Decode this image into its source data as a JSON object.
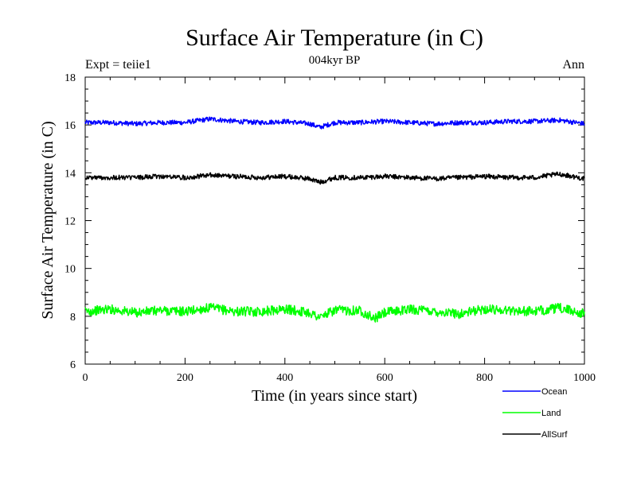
{
  "chart_data": {
    "type": "line",
    "title": "Surface Air Temperature (in C)",
    "subtitle": "004kyr BP",
    "left_label": "Expt = teiie1",
    "right_label": "Ann",
    "xlabel": "Time (in years since start)",
    "ylabel": "Surface Air Temperature (in C)",
    "xlim": [
      0,
      1000
    ],
    "ylim": [
      6,
      18
    ],
    "x_ticks": [
      0,
      200,
      400,
      600,
      800,
      1000
    ],
    "y_ticks": [
      6,
      8,
      10,
      12,
      14,
      16,
      18
    ],
    "grid": false,
    "legend_position": "bottom-right, below plot",
    "series": [
      {
        "name": "Ocean",
        "color": "#0000ff",
        "x": [
          0,
          50,
          100,
          150,
          200,
          250,
          300,
          350,
          400,
          450,
          470,
          500,
          550,
          600,
          650,
          700,
          750,
          800,
          850,
          900,
          950,
          1000
        ],
        "values": [
          16.1,
          16.1,
          16.05,
          16.1,
          16.1,
          16.25,
          16.15,
          16.1,
          16.15,
          16.05,
          15.9,
          16.1,
          16.1,
          16.15,
          16.1,
          16.05,
          16.1,
          16.1,
          16.15,
          16.15,
          16.2,
          16.05
        ]
      },
      {
        "name": "Land",
        "color": "#00ff00",
        "x": [
          0,
          50,
          100,
          150,
          200,
          250,
          300,
          350,
          400,
          450,
          470,
          500,
          550,
          580,
          600,
          650,
          700,
          750,
          800,
          850,
          900,
          950,
          1000
        ],
        "values": [
          8.2,
          8.3,
          8.15,
          8.25,
          8.2,
          8.35,
          8.2,
          8.2,
          8.3,
          8.15,
          7.95,
          8.25,
          8.25,
          7.9,
          8.15,
          8.3,
          8.2,
          8.1,
          8.3,
          8.25,
          8.2,
          8.35,
          8.1
        ]
      },
      {
        "name": "AllSurf",
        "color": "#000000",
        "x": [
          0,
          50,
          100,
          150,
          200,
          250,
          300,
          350,
          400,
          450,
          470,
          500,
          550,
          600,
          650,
          700,
          750,
          800,
          850,
          900,
          950,
          1000
        ],
        "values": [
          13.8,
          13.8,
          13.8,
          13.85,
          13.8,
          13.9,
          13.85,
          13.8,
          13.85,
          13.75,
          13.6,
          13.8,
          13.8,
          13.85,
          13.8,
          13.75,
          13.8,
          13.85,
          13.8,
          13.8,
          13.95,
          13.75
        ]
      }
    ]
  }
}
